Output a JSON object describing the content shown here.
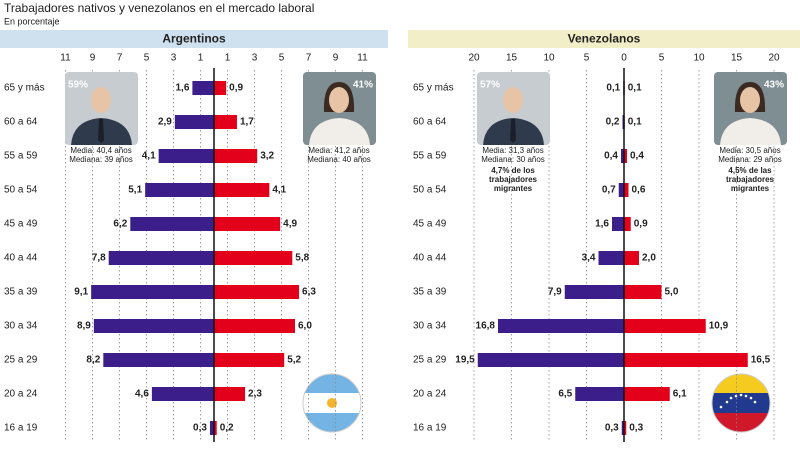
{
  "header": {
    "title": "Trabajadores nativos y venezolanos en el mercado laboral",
    "subtitle": "En porcentaje"
  },
  "chart_data": [
    {
      "type": "pyramid",
      "title": "Argentinos",
      "categories": [
        "65 y más",
        "60 a 64",
        "55 a 59",
        "50 a 54",
        "45 a 49",
        "40 a 44",
        "35 a 39",
        "30 a 34",
        "25 a 29",
        "20 a 24",
        "16 a 19"
      ],
      "series": [
        {
          "color": "#3b1e8a",
          "values": [
            1.6,
            2.9,
            4.1,
            5.1,
            6.2,
            7.8,
            9.1,
            8.9,
            8.2,
            4.6,
            0.3
          ],
          "value_labels": [
            "1,6",
            "2,9",
            "4,1",
            "5,1",
            "6,2",
            "7,8",
            "9,1",
            "8,9",
            "8,2",
            "4,6",
            "0,3"
          ]
        },
        {
          "color": "#e2001a",
          "values": [
            0.9,
            1.7,
            3.2,
            4.1,
            4.9,
            5.8,
            6.3,
            6.0,
            5.2,
            2.3,
            0.2
          ],
          "value_labels": [
            "0,9",
            "1,7",
            "3,2",
            "4,1",
            "4,9",
            "5,8",
            "6,3",
            "6,0",
            "5,2",
            "2,3",
            "0,2"
          ]
        }
      ],
      "xlim": [
        -12,
        12
      ],
      "xticks": [
        {
          "value": -11,
          "label": "11"
        },
        {
          "value": -9,
          "label": "9"
        },
        {
          "value": -7,
          "label": "7"
        },
        {
          "value": -5,
          "label": "5"
        },
        {
          "value": -3,
          "label": "3"
        },
        {
          "value": -1,
          "label": "1"
        },
        1,
        3,
        5,
        7,
        9,
        11
      ],
      "grid": true,
      "groups": [
        {
          "share": "59%",
          "notes": [
            "Media: 40,4 años",
            "Mediana: 39 años"
          ]
        },
        {
          "share": "41%",
          "notes": [
            "Media: 41,2 años",
            "Mediana: 40 años"
          ]
        }
      ]
    },
    {
      "type": "pyramid",
      "title": "Venezolanos",
      "categories": [
        "65 y más",
        "60 a 64",
        "55 a 59",
        "50 a 54",
        "45 a 49",
        "40 a 44",
        "35 a 39",
        "30 a 34",
        "25 a 29",
        "20 a 24",
        "16 a 19"
      ],
      "series": [
        {
          "color": "#3b1e8a",
          "values": [
            0.1,
            0.2,
            0.4,
            0.7,
            1.6,
            3.4,
            7.9,
            16.8,
            19.5,
            6.5,
            0.3
          ],
          "value_labels": [
            "0,1",
            "0,2",
            "0,4",
            "0,7",
            "1,6",
            "3,4",
            "7,9",
            "16,8",
            "19,5",
            "6,5",
            "0,3"
          ]
        },
        {
          "color": "#e2001a",
          "values": [
            0.1,
            0.1,
            0.4,
            0.6,
            0.9,
            2.0,
            5.0,
            10.9,
            16.5,
            6.1,
            0.3
          ],
          "value_labels": [
            "0,1",
            "0,1",
            "0,4",
            "0,6",
            "0,9",
            "2,0",
            "5,0",
            "10,9",
            "16,5",
            "6,1",
            "0,3"
          ]
        }
      ],
      "xlim": [
        -22,
        22
      ],
      "xticks": [
        {
          "value": -20,
          "label": "20"
        },
        {
          "value": -15,
          "label": "15"
        },
        {
          "value": -10,
          "label": "10"
        },
        {
          "value": -5,
          "label": "5"
        },
        0,
        5,
        10,
        15,
        20
      ],
      "grid": true,
      "groups": [
        {
          "share": "57%",
          "notes": [
            "Media: 31,3 años",
            "Mediana: 30 años"
          ],
          "footnote": [
            "4,7% de los",
            "trabajadores",
            "migrantes"
          ]
        },
        {
          "share": "43%",
          "notes": [
            "Media: 30,5 años",
            "Mediana: 29 años"
          ],
          "footnote": [
            "4,5% de las",
            "trabajadores",
            "migrantes"
          ]
        }
      ]
    }
  ]
}
